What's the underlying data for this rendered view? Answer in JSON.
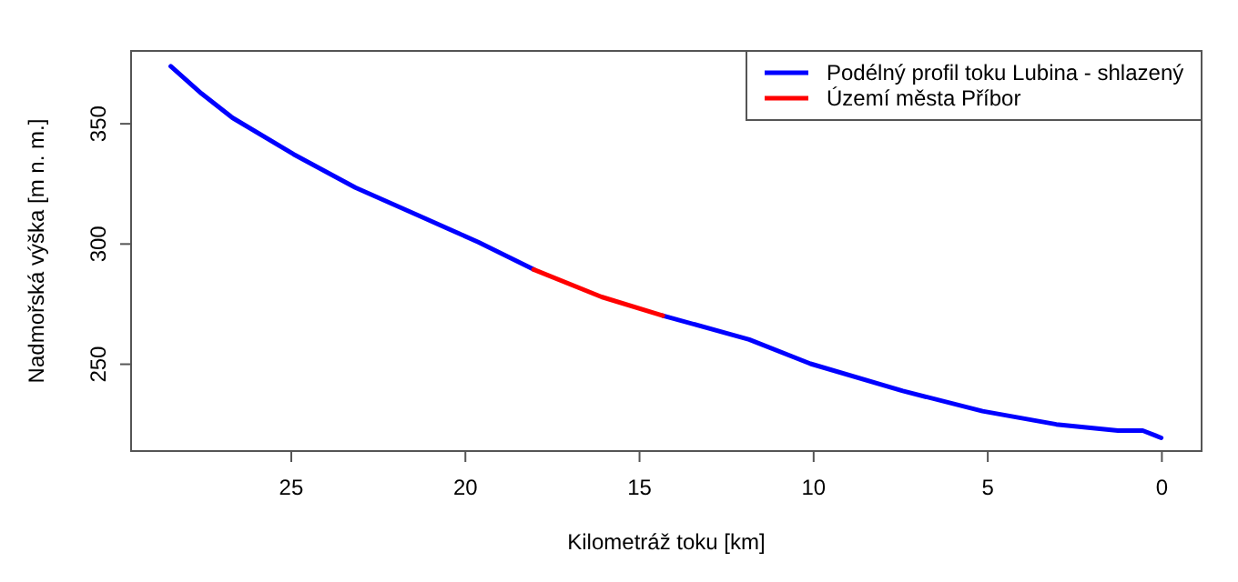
{
  "chart_data": {
    "type": "line",
    "xlabel": "Kilometráž toku [km]",
    "ylabel": "Nadmořská výška [m n. m.]",
    "xlim": [
      29.6,
      -1.14
    ],
    "xticks": [
      25,
      20,
      15,
      10,
      5,
      0
    ],
    "ylim": [
      213.9,
      380.3
    ],
    "yticks": [
      250,
      300,
      350
    ],
    "legend": "top right",
    "grid": false,
    "marker": "none",
    "line_style": "solid",
    "series": [
      {
        "name": "Podélný profil toku Lubina - shlazený",
        "color": "#0000ff",
        "x": [
          28.46,
          27.58,
          26.69,
          24.93,
          23.16,
          21.39,
          19.63,
          18.04,
          16.09,
          14.33,
          11.85,
          10.09,
          7.44,
          5.15,
          3.03,
          1.26,
          0.55,
          0.02
        ],
        "values": [
          373.9,
          362.6,
          352.5,
          337.3,
          323.5,
          312.1,
          300.8,
          289.4,
          null,
          270.2,
          260.3,
          250.2,
          238.9,
          230.5,
          225,
          222.4,
          222.4,
          219.4
        ]
      },
      {
        "name": "Území města Příbor",
        "color": "#ff0000",
        "x": [
          18.04,
          16.09,
          14.33
        ],
        "values": [
          289.4,
          278,
          270.2
        ]
      }
    ]
  }
}
